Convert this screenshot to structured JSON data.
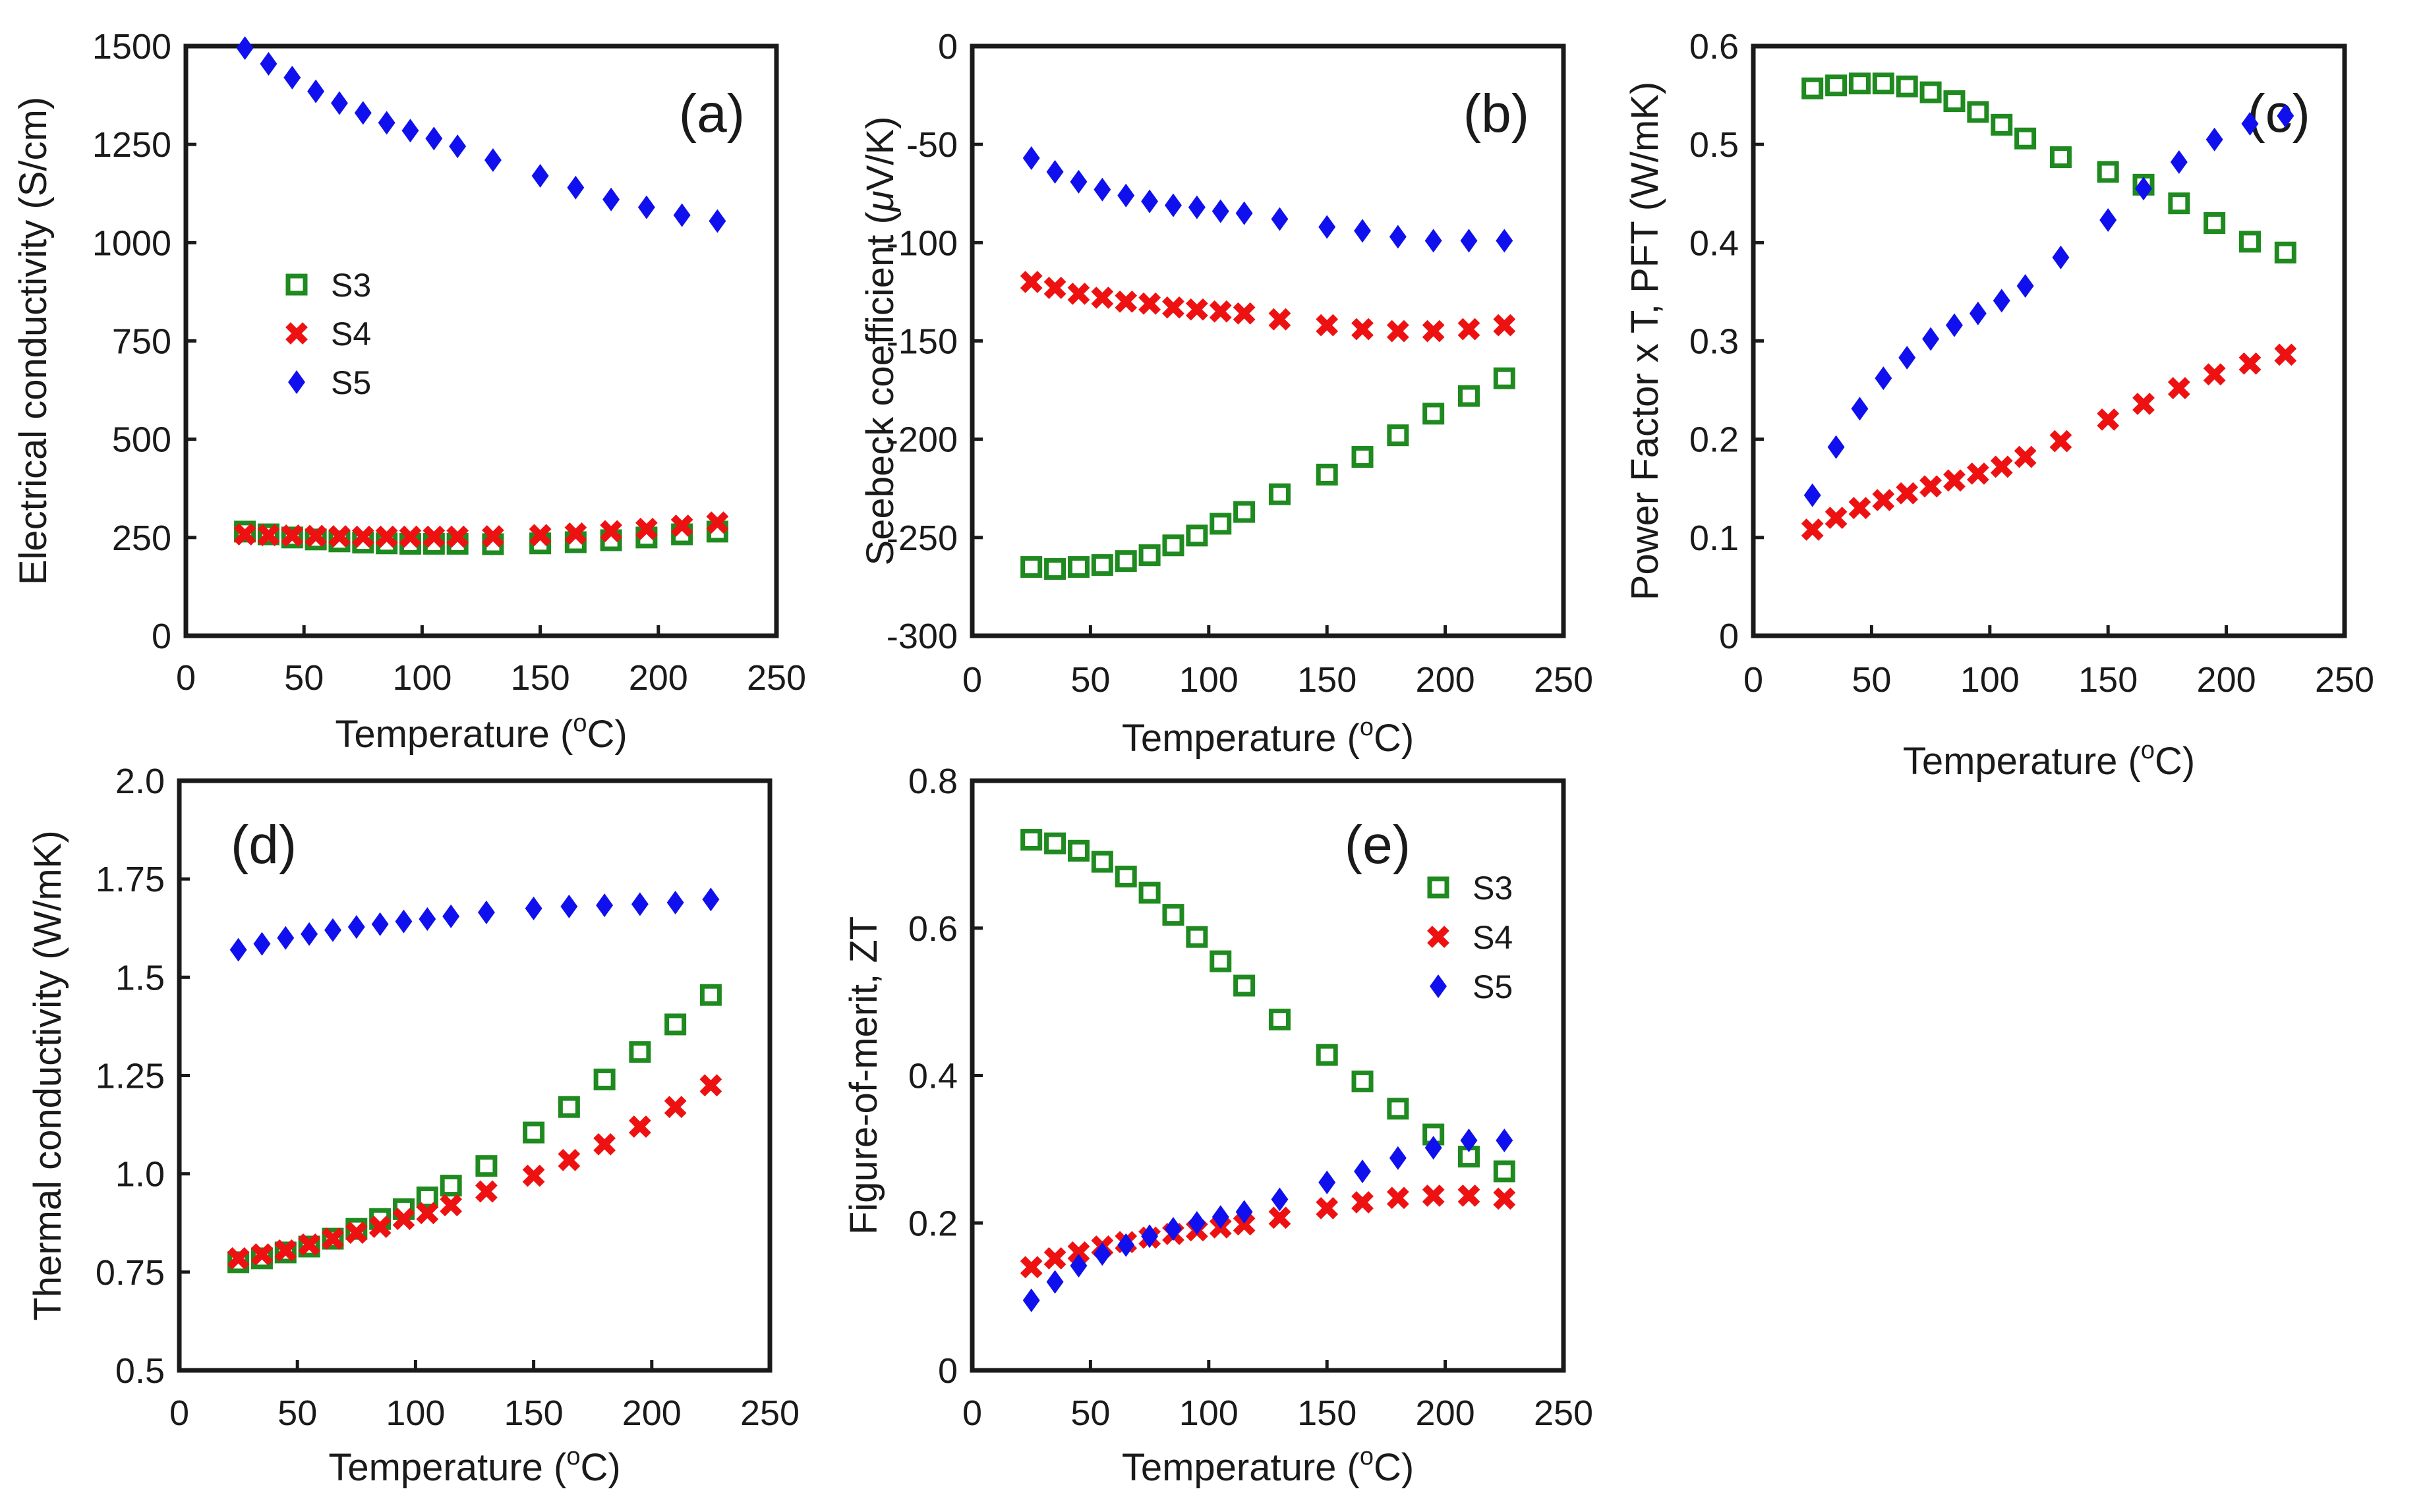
{
  "colors": {
    "S3": "#1f8a1f",
    "S4": "#ee1111",
    "S5": "#1010ee",
    "axis": "#1a1a1a"
  },
  "chart_data": [
    {
      "id": "a",
      "type": "scatter",
      "panel_label": "(a)",
      "xlabel": "Temperature (oC)",
      "xlabel_base": "Temperature (",
      "xlabel_sup": "o",
      "xlabel_end": "C)",
      "ylabel": "Electrical conductivity (S/cm)",
      "xlim": [
        0,
        250
      ],
      "ylim": [
        0,
        1500
      ],
      "xticks": [
        0,
        50,
        100,
        150,
        200,
        250
      ],
      "xtick_labels": [
        "0",
        "50",
        "100",
        "150",
        "200",
        "250"
      ],
      "yticks": [
        0,
        250,
        500,
        750,
        1000,
        1250,
        1500
      ],
      "ytick_labels": [
        "0",
        "250",
        "500",
        "750",
        "1000",
        "1250",
        "1500"
      ],
      "legend": {
        "placement": "center-left",
        "entries": [
          "S3",
          "S4",
          "S5"
        ]
      },
      "x": [
        25,
        35,
        45,
        55,
        65,
        75,
        85,
        95,
        105,
        115,
        130,
        150,
        165,
        180,
        195,
        210,
        225
      ],
      "series": [
        {
          "name": "S3",
          "values": [
            265,
            258,
            250,
            245,
            240,
            237,
            235,
            234,
            234,
            234,
            233,
            235,
            238,
            243,
            250,
            258,
            265
          ]
        },
        {
          "name": "S4",
          "values": [
            258,
            256,
            255,
            254,
            253,
            252,
            252,
            252,
            252,
            252,
            253,
            256,
            260,
            266,
            272,
            280,
            288
          ]
        },
        {
          "name": "S5",
          "values": [
            1495,
            1455,
            1420,
            1385,
            1355,
            1330,
            1305,
            1285,
            1265,
            1245,
            1210,
            1170,
            1140,
            1110,
            1090,
            1070,
            1055
          ]
        }
      ]
    },
    {
      "id": "b",
      "type": "scatter",
      "panel_label": "(b)",
      "xlabel": "Temperature (oC)",
      "xlabel_base": "Temperature (",
      "xlabel_sup": "o",
      "xlabel_end": "C)",
      "ylabel": "Seebeck coefficient (μV/K)",
      "ylabel_base": "Seebeck coefficient (",
      "ylabel_mu": "μ",
      "ylabel_end": "V/K)",
      "xlim": [
        0,
        250
      ],
      "ylim": [
        -300,
        0
      ],
      "xticks": [
        0,
        50,
        100,
        150,
        200,
        250
      ],
      "xtick_labels": [
        "0",
        "50",
        "100",
        "150",
        "200",
        "250"
      ],
      "yticks": [
        -300,
        -250,
        -200,
        -150,
        -100,
        -50,
        0
      ],
      "ytick_labels": [
        "-300",
        "-250",
        "-200",
        "-150",
        "-100",
        "-50",
        "0"
      ],
      "x": [
        25,
        35,
        45,
        55,
        65,
        75,
        85,
        95,
        105,
        115,
        130,
        150,
        165,
        180,
        195,
        210,
        225
      ],
      "series": [
        {
          "name": "S3",
          "values": [
            -265,
            -266,
            -265,
            -264,
            -262,
            -259,
            -254,
            -249,
            -243,
            -237,
            -228,
            -218,
            -209,
            -198,
            -187,
            -178,
            -169
          ]
        },
        {
          "name": "S4",
          "values": [
            -120,
            -123,
            -126,
            -128,
            -130,
            -131,
            -133,
            -134,
            -135,
            -136,
            -139,
            -142,
            -144,
            -145,
            -145,
            -144,
            -142
          ]
        },
        {
          "name": "S5",
          "values": [
            -57,
            -64,
            -69,
            -73,
            -76,
            -79,
            -81,
            -82,
            -84,
            -85,
            -88,
            -92,
            -94,
            -97,
            -99,
            -99,
            -99
          ]
        }
      ]
    },
    {
      "id": "c",
      "type": "scatter",
      "panel_label": "(c)",
      "xlabel": "Temperature (oC)",
      "xlabel_base": "Temperature (",
      "xlabel_sup": "o",
      "xlabel_end": "C)",
      "ylabel": "Power Factor x T, PFT (W/mK)",
      "xlim": [
        0,
        250
      ],
      "ylim": [
        0,
        0.6
      ],
      "xticks": [
        0,
        50,
        100,
        150,
        200,
        250
      ],
      "xtick_labels": [
        "0",
        "50",
        "100",
        "150",
        "200",
        "250"
      ],
      "yticks": [
        0,
        0.1,
        0.2,
        0.3,
        0.4,
        0.5,
        0.6
      ],
      "ytick_labels": [
        "0",
        "0.1",
        "0.2",
        "0.3",
        "0.4",
        "0.5",
        "0.6"
      ],
      "x": [
        25,
        35,
        45,
        55,
        65,
        75,
        85,
        95,
        105,
        115,
        130,
        150,
        165,
        180,
        195,
        210,
        225
      ],
      "series": [
        {
          "name": "S3",
          "values": [
            0.557,
            0.56,
            0.562,
            0.562,
            0.559,
            0.553,
            0.544,
            0.533,
            0.52,
            0.506,
            0.487,
            0.472,
            0.459,
            0.44,
            0.42,
            0.401,
            0.39
          ]
        },
        {
          "name": "S4",
          "values": [
            0.108,
            0.12,
            0.13,
            0.138,
            0.145,
            0.152,
            0.158,
            0.165,
            0.172,
            0.182,
            0.198,
            0.22,
            0.236,
            0.252,
            0.266,
            0.277,
            0.286
          ]
        },
        {
          "name": "S5",
          "values": [
            0.143,
            0.192,
            0.231,
            0.262,
            0.283,
            0.302,
            0.316,
            0.328,
            0.341,
            0.356,
            0.385,
            0.423,
            0.455,
            0.482,
            0.505,
            0.521,
            0.529
          ]
        }
      ]
    },
    {
      "id": "d",
      "type": "scatter",
      "panel_label": "(d)",
      "xlabel": "Temperature (oC)",
      "xlabel_base": "Temperature (",
      "xlabel_sup": "o",
      "xlabel_end": "C)",
      "ylabel": "Thermal conductivity (W/mK)",
      "xlim": [
        0,
        250
      ],
      "ylim": [
        0.5,
        2.0
      ],
      "xticks": [
        0,
        50,
        100,
        150,
        200,
        250
      ],
      "xtick_labels": [
        "0",
        "50",
        "100",
        "150",
        "200",
        "250"
      ],
      "yticks": [
        0.5,
        0.75,
        1.0,
        1.25,
        1.5,
        1.75,
        2.0
      ],
      "ytick_labels": [
        "0.5",
        "0.75",
        "1.0",
        "1.25",
        "1.5",
        "1.75",
        "2.0"
      ],
      "x": [
        25,
        35,
        45,
        55,
        65,
        75,
        85,
        95,
        105,
        115,
        130,
        150,
        165,
        180,
        195,
        210,
        225
      ],
      "series": [
        {
          "name": "S3",
          "values": [
            0.775,
            0.785,
            0.8,
            0.815,
            0.835,
            0.86,
            0.885,
            0.91,
            0.94,
            0.97,
            1.02,
            1.105,
            1.17,
            1.24,
            1.31,
            1.38,
            1.455
          ]
        },
        {
          "name": "S4",
          "values": [
            0.785,
            0.795,
            0.805,
            0.82,
            0.835,
            0.85,
            0.865,
            0.885,
            0.9,
            0.92,
            0.955,
            0.995,
            1.035,
            1.075,
            1.12,
            1.17,
            1.225
          ]
        },
        {
          "name": "S5",
          "values": [
            1.57,
            1.585,
            1.6,
            1.61,
            1.62,
            1.628,
            1.635,
            1.642,
            1.648,
            1.655,
            1.665,
            1.675,
            1.68,
            1.683,
            1.686,
            1.69,
            1.698
          ]
        }
      ]
    },
    {
      "id": "e",
      "type": "scatter",
      "panel_label": "(e)",
      "xlabel": "Temperature (oC)",
      "xlabel_base": "Temperature (",
      "xlabel_sup": "o",
      "xlabel_end": "C)",
      "ylabel": "Figure-of-merit, ZT",
      "xlim": [
        0,
        250
      ],
      "ylim": [
        0,
        0.8
      ],
      "xticks": [
        0,
        50,
        100,
        150,
        200,
        250
      ],
      "xtick_labels": [
        "0",
        "50",
        "100",
        "150",
        "200",
        "250"
      ],
      "yticks": [
        0,
        0.2,
        0.4,
        0.6,
        0.8
      ],
      "ytick_labels": [
        "0",
        "0.2",
        "0.4",
        "0.6",
        "0.8"
      ],
      "legend": {
        "placement": "top-right",
        "entries": [
          "S3",
          "S4",
          "S5"
        ]
      },
      "x": [
        25,
        35,
        45,
        55,
        65,
        75,
        85,
        95,
        105,
        115,
        130,
        150,
        165,
        180,
        195,
        210,
        225
      ],
      "series": [
        {
          "name": "S3",
          "values": [
            0.72,
            0.715,
            0.705,
            0.69,
            0.67,
            0.648,
            0.618,
            0.588,
            0.555,
            0.522,
            0.476,
            0.428,
            0.392,
            0.355,
            0.32,
            0.29,
            0.27
          ]
        },
        {
          "name": "S4",
          "values": [
            0.14,
            0.152,
            0.16,
            0.168,
            0.174,
            0.18,
            0.185,
            0.19,
            0.194,
            0.198,
            0.207,
            0.22,
            0.228,
            0.234,
            0.237,
            0.237,
            0.233
          ]
        },
        {
          "name": "S5",
          "values": [
            0.095,
            0.12,
            0.142,
            0.158,
            0.17,
            0.182,
            0.192,
            0.2,
            0.208,
            0.215,
            0.232,
            0.255,
            0.27,
            0.288,
            0.302,
            0.312,
            0.312
          ]
        }
      ]
    }
  ]
}
